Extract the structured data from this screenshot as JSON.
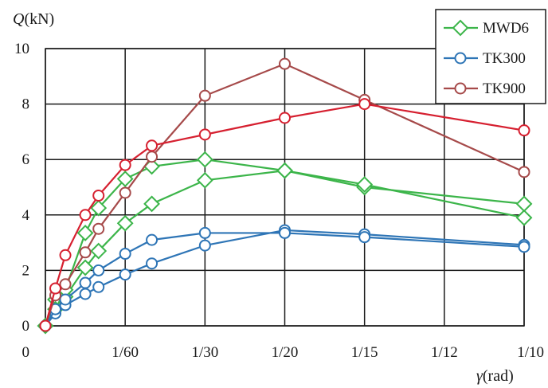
{
  "chart_data": {
    "type": "line",
    "ylabel_var": "Q",
    "ylabel_unit": "(kN)",
    "xlabel_var": "γ",
    "xlabel_unit": "(rad)",
    "xlim": [
      0,
      0.1
    ],
    "ylim": [
      0,
      10
    ],
    "xticks": [
      {
        "value": 0,
        "label": "0"
      },
      {
        "value": 0.016667,
        "label": "1/60"
      },
      {
        "value": 0.033333,
        "label": "1/30"
      },
      {
        "value": 0.05,
        "label": "1/20"
      },
      {
        "value": 0.066667,
        "label": "1/15"
      },
      {
        "value": 0.083333,
        "label": "1/12"
      },
      {
        "value": 0.1,
        "label": "1/10"
      }
    ],
    "yticks": [
      {
        "value": 0,
        "label": "0"
      },
      {
        "value": 2,
        "label": "2"
      },
      {
        "value": 4,
        "label": "4"
      },
      {
        "value": 6,
        "label": "6"
      },
      {
        "value": 8,
        "label": "8"
      },
      {
        "value": 10,
        "label": "10"
      }
    ],
    "grid": true,
    "legend_position": "top-right",
    "series": [
      {
        "name": "MWD6",
        "color": "#3cb54a",
        "marker": "diamond",
        "x": [
          0,
          0.002083,
          0.004167,
          0.008333,
          0.0111,
          0.016667,
          0.022222,
          0.033333,
          0.05,
          0.066667,
          0.1
        ],
        "y": [
          0,
          0.95,
          1.05,
          2.1,
          2.7,
          3.7,
          4.4,
          5.25,
          5.6,
          5.0,
          4.4
        ],
        "extra": [
          {
            "x": 0.1,
            "y": 3.9
          }
        ]
      },
      {
        "name": "MWD6",
        "color": "#3cb54a",
        "marker": "diamond",
        "legend": false,
        "x": [
          0,
          0.002083,
          0.004167,
          0.008333,
          0.0111,
          0.016667,
          0.022222,
          0.033333,
          0.05,
          0.066667,
          0.1
        ],
        "y": [
          0,
          0.6,
          1.3,
          3.35,
          4.25,
          5.3,
          5.75,
          6.0,
          5.6,
          5.1,
          3.9
        ]
      },
      {
        "name": "TK300",
        "color": "#2e75b6",
        "marker": "circle",
        "x": [
          0,
          0.002083,
          0.004167,
          0.008333,
          0.0111,
          0.016667,
          0.022222,
          0.033333,
          0.05,
          0.066667,
          0.1
        ],
        "y": [
          0,
          0.45,
          0.75,
          1.15,
          1.4,
          1.85,
          2.25,
          2.9,
          3.45,
          3.3,
          2.92
        ]
      },
      {
        "name": "TK300",
        "color": "#2e75b6",
        "marker": "circle",
        "legend": false,
        "x": [
          0,
          0.002083,
          0.004167,
          0.008333,
          0.0111,
          0.016667,
          0.022222,
          0.033333,
          0.05,
          0.066667,
          0.1
        ],
        "y": [
          0,
          0.6,
          0.95,
          1.55,
          2.0,
          2.6,
          3.1,
          3.35,
          3.35,
          3.2,
          2.85
        ]
      },
      {
        "name": "TK900",
        "color": "#a64a4a",
        "marker": "circle",
        "x": [
          0,
          0.002083,
          0.004167,
          0.008333,
          0.0111,
          0.016667,
          0.022222,
          0.033333,
          0.05,
          0.066667,
          0.1
        ],
        "y": [
          0,
          1.1,
          1.5,
          2.65,
          3.5,
          4.8,
          6.1,
          8.3,
          9.45,
          8.15,
          5.55
        ]
      },
      {
        "name": "TK900",
        "color": "#d62030",
        "marker": "circle",
        "legend": false,
        "x": [
          0,
          0.002083,
          0.004167,
          0.008333,
          0.0111,
          0.016667,
          0.022222,
          0.033333,
          0.05,
          0.066667,
          0.1
        ],
        "y": [
          0,
          1.35,
          2.55,
          4.0,
          4.7,
          5.8,
          6.5,
          6.9,
          7.5,
          8.0,
          7.05
        ]
      }
    ]
  },
  "legend": [
    {
      "label": "MWD6",
      "color": "#3cb54a",
      "marker": "diamond"
    },
    {
      "label": "TK300",
      "color": "#2e75b6",
      "marker": "circle"
    },
    {
      "label": "TK900",
      "color": "#a64a4a",
      "marker": "circle"
    }
  ]
}
